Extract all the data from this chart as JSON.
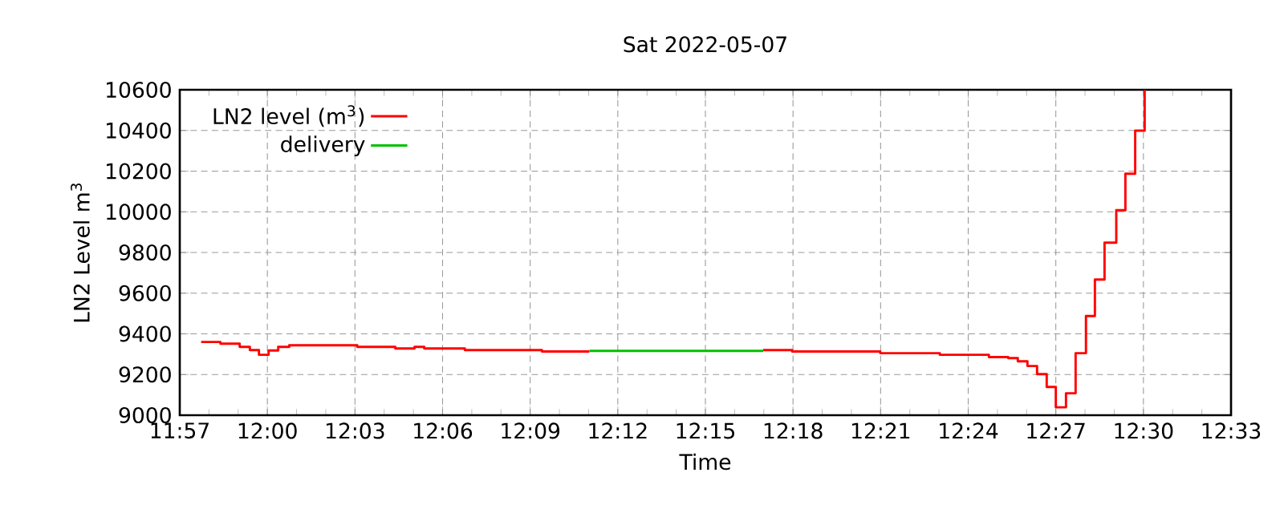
{
  "chart_data": {
    "type": "step",
    "title": "Sat 2022-05-07",
    "xlabel": "Time",
    "ylabel": "LN2 Level m$^{3}$",
    "xlim": [
      11.95,
      12.55
    ],
    "ylim": [
      9000,
      10600
    ],
    "xticks": [
      {
        "value": 11.95,
        "label": "11:57"
      },
      {
        "value": 12.0,
        "label": "12:00"
      },
      {
        "value": 12.05,
        "label": "12:03"
      },
      {
        "value": 12.1,
        "label": "12:06"
      },
      {
        "value": 12.15,
        "label": "12:09"
      },
      {
        "value": 12.2,
        "label": "12:12"
      },
      {
        "value": 12.25,
        "label": "12:15"
      },
      {
        "value": 12.3,
        "label": "12:18"
      },
      {
        "value": 12.35,
        "label": "12:21"
      },
      {
        "value": 12.4,
        "label": "12:24"
      },
      {
        "value": 12.45,
        "label": "12:27"
      },
      {
        "value": 12.5,
        "label": "12:30"
      },
      {
        "value": 12.55,
        "label": "12:33"
      }
    ],
    "yticks": [
      9000,
      9200,
      9400,
      9600,
      9800,
      10000,
      10200,
      10400,
      10600
    ],
    "grid": true,
    "legend": "top left",
    "marker": "none",
    "line_style": "solid",
    "series": [
      {
        "name": "LN2 level (m$^{3}$)",
        "color": "#ff0000",
        "x": [
          11.9622,
          11.9732,
          11.9842,
          11.99,
          11.9952,
          12.0007,
          12.0062,
          12.0125,
          12.0513,
          12.073,
          12.084,
          12.0895,
          12.1127,
          12.1567,
          12.1838,
          12.19,
          12.283,
          12.2995,
          12.3498,
          12.3838,
          12.4118,
          12.4228,
          12.4283,
          12.4338,
          12.4393,
          12.4448,
          12.45,
          12.4558,
          12.4613,
          12.4672,
          12.4723,
          12.4778,
          12.4845,
          12.4897,
          12.4953,
          12.5007
        ],
        "values": [
          9360,
          9352,
          9336,
          9320,
          9297,
          9318,
          9336,
          9344,
          9336,
          9328,
          9336,
          9328,
          9320,
          9313,
          9313,
          null,
          9320,
          9313,
          9305,
          9297,
          9286,
          9281,
          9265,
          9242,
          9202,
          9139,
          9039,
          9108,
          9305,
          9488,
          9667,
          9848,
          10008,
          10187,
          10399,
          10600
        ]
      },
      {
        "name": "delivery",
        "color": "#00c000",
        "x": [
          12.1838,
          12.283
        ],
        "values": [
          9316,
          9316
        ]
      }
    ]
  }
}
